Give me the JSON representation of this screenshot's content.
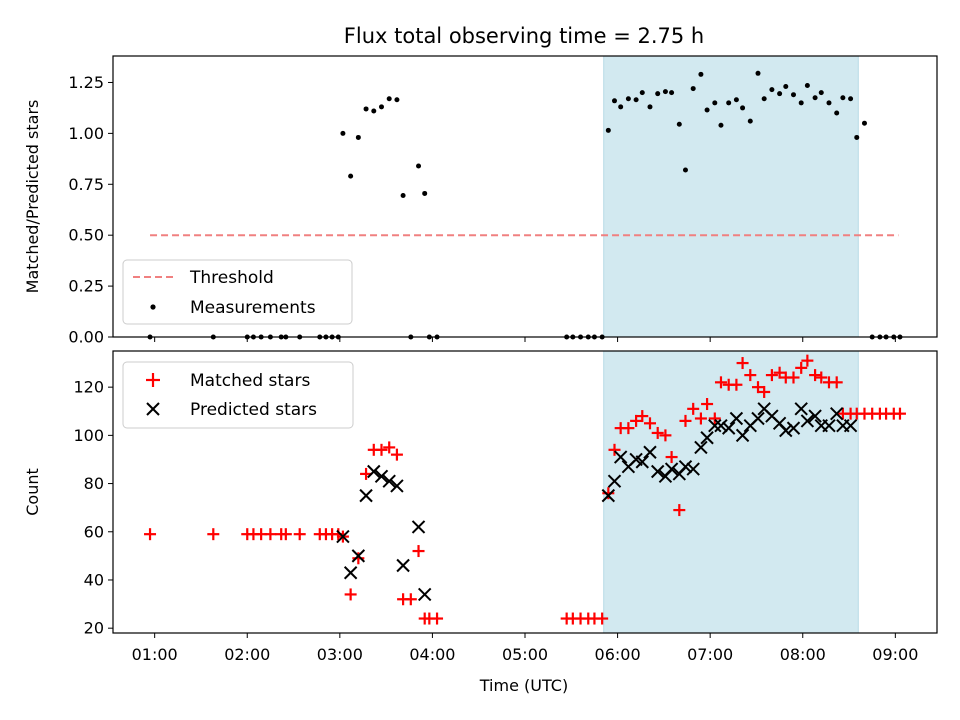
{
  "chart_data": {
    "type": "scatter",
    "title": "Flux total observing time = 2.75 h",
    "xlabel": "Time (UTC)",
    "x_ticks": [
      "01:00",
      "02:00",
      "03:00",
      "04:00",
      "05:00",
      "06:00",
      "07:00",
      "08:00",
      "09:00"
    ],
    "xlim": [
      "00:33",
      "09:27"
    ],
    "shaded_region": {
      "start": "05:51",
      "end": "08:36",
      "color": "#d2e9f0"
    },
    "panels": [
      {
        "ylabel": "Matched/Predicted stars",
        "ylim": [
          0,
          1.38
        ],
        "y_ticks": [
          "0.00",
          "0.25",
          "0.50",
          "0.75",
          "1.00",
          "1.25"
        ],
        "y_tick_values": [
          0,
          0.25,
          0.5,
          0.75,
          1.0,
          1.25
        ],
        "legend": [
          "Threshold",
          "Measurements"
        ],
        "legend_position": "lower-left",
        "threshold": {
          "name": "Threshold",
          "value": 0.5,
          "x_start": "00:57",
          "x_end": "09:02",
          "color": "#f08080"
        },
        "series": [
          {
            "name": "Measurements",
            "color": "#000000",
            "x": [
              "00:57",
              "01:38",
              "02:00",
              "02:04",
              "02:09",
              "02:15",
              "02:22",
              "02:25",
              "02:34",
              "02:47",
              "02:51",
              "02:55",
              "02:59",
              "03:02",
              "03:07",
              "03:12",
              "03:17",
              "03:22",
              "03:27",
              "03:32",
              "03:37",
              "03:41",
              "03:46",
              "03:51",
              "03:55",
              "03:58",
              "04:03",
              "05:27",
              "05:31",
              "05:36",
              "05:41",
              "05:45",
              "05:50",
              "05:54",
              "05:58",
              "06:02",
              "06:07",
              "06:12",
              "06:16",
              "06:21",
              "06:26",
              "06:31",
              "06:35",
              "06:40",
              "06:44",
              "06:49",
              "06:54",
              "06:58",
              "07:03",
              "07:07",
              "07:12",
              "07:17",
              "07:21",
              "07:26",
              "07:31",
              "07:35",
              "07:40",
              "07:45",
              "07:49",
              "07:54",
              "07:59",
              "08:03",
              "08:08",
              "08:12",
              "08:17",
              "08:22",
              "08:26",
              "08:31",
              "08:35",
              "08:40",
              "08:45",
              "08:50",
              "08:54",
              "08:59",
              "09:03"
            ],
            "y": [
              0,
              0,
              0,
              0,
              0,
              0,
              0,
              0,
              0,
              0,
              0,
              0,
              0,
              1.0,
              0.79,
              0.98,
              1.12,
              1.11,
              1.13,
              1.17,
              1.165,
              0.695,
              0,
              0.84,
              0.705,
              0,
              0,
              0,
              0,
              0,
              0,
              0,
              0,
              1.015,
              1.16,
              1.13,
              1.17,
              1.165,
              1.2,
              1.13,
              1.195,
              1.205,
              1.2,
              1.045,
              0.82,
              1.22,
              1.29,
              1.115,
              1.15,
              1.04,
              1.15,
              1.165,
              1.125,
              1.06,
              1.295,
              1.17,
              1.215,
              1.195,
              1.23,
              1.19,
              1.15,
              1.235,
              1.175,
              1.2,
              1.15,
              1.1,
              1.175,
              1.17,
              0.98,
              1.05,
              0,
              0,
              0,
              0,
              0
            ]
          }
        ]
      },
      {
        "ylabel": "Count",
        "ylim": [
          18,
          135
        ],
        "y_ticks": [
          "20",
          "40",
          "60",
          "80",
          "100",
          "120"
        ],
        "y_tick_values": [
          20,
          40,
          60,
          80,
          100,
          120
        ],
        "legend": [
          "Matched stars",
          "Predicted stars"
        ],
        "legend_position": "upper-left",
        "series": [
          {
            "name": "Matched stars",
            "marker": "plus",
            "color": "#ff0000",
            "x": [
              "00:57",
              "01:38",
              "02:00",
              "02:04",
              "02:09",
              "02:15",
              "02:22",
              "02:25",
              "02:34",
              "02:47",
              "02:51",
              "02:55",
              "02:59",
              "03:02",
              "03:07",
              "03:12",
              "03:17",
              "03:22",
              "03:27",
              "03:32",
              "03:37",
              "03:41",
              "03:46",
              "03:51",
              "03:55",
              "03:58",
              "04:03",
              "05:27",
              "05:31",
              "05:36",
              "05:41",
              "05:45",
              "05:50",
              "05:54",
              "05:58",
              "06:02",
              "06:07",
              "06:12",
              "06:16",
              "06:21",
              "06:26",
              "06:31",
              "06:35",
              "06:40",
              "06:44",
              "06:49",
              "06:54",
              "06:58",
              "07:03",
              "07:07",
              "07:12",
              "07:17",
              "07:21",
              "07:26",
              "07:31",
              "07:35",
              "07:40",
              "07:45",
              "07:49",
              "07:54",
              "07:59",
              "08:03",
              "08:08",
              "08:12",
              "08:17",
              "08:22",
              "08:26",
              "08:31",
              "08:35",
              "08:40",
              "08:45",
              "08:50",
              "08:54",
              "08:59",
              "09:03"
            ],
            "y": [
              59,
              59,
              59,
              59,
              59,
              59,
              59,
              59,
              59,
              59,
              59,
              59,
              59,
              58,
              34,
              49,
              84,
              94,
              94,
              95,
              92,
              32,
              32,
              52,
              24,
              24,
              24,
              24,
              24,
              24,
              24,
              24,
              24,
              76,
              94,
              103,
              103,
              106,
              108,
              105,
              101,
              100,
              91,
              69,
              106,
              111,
              107,
              113,
              107,
              122,
              121,
              121,
              130,
              125,
              120,
              118,
              125,
              126,
              124,
              124,
              128,
              131,
              125,
              124,
              122,
              122,
              109,
              109,
              109,
              109,
              109,
              109,
              109,
              109,
              109
            ]
          },
          {
            "name": "Predicted stars",
            "marker": "x",
            "color": "#000000",
            "x": [
              "03:02",
              "03:07",
              "03:12",
              "03:17",
              "03:22",
              "03:27",
              "03:32",
              "03:37",
              "03:41",
              "03:51",
              "03:55",
              "05:54",
              "05:58",
              "06:02",
              "06:07",
              "06:12",
              "06:16",
              "06:21",
              "06:26",
              "06:31",
              "06:35",
              "06:40",
              "06:44",
              "06:49",
              "06:54",
              "06:58",
              "07:03",
              "07:07",
              "07:12",
              "07:17",
              "07:21",
              "07:26",
              "07:31",
              "07:35",
              "07:40",
              "07:45",
              "07:49",
              "07:54",
              "07:59",
              "08:03",
              "08:08",
              "08:12",
              "08:17",
              "08:22",
              "08:26",
              "08:31"
            ],
            "y": [
              58,
              43,
              50,
              75,
              85,
              83,
              81,
              79,
              46,
              62,
              34,
              75,
              81,
              91,
              87,
              90,
              89,
              93,
              85,
              83,
              86,
              84,
              87,
              86,
              95,
              99,
              104,
              104,
              103,
              107,
              100,
              104,
              107,
              111,
              108,
              105,
              102,
              103,
              111,
              106,
              108,
              104,
              104,
              109,
              104,
              104
            ]
          }
        ]
      }
    ]
  }
}
